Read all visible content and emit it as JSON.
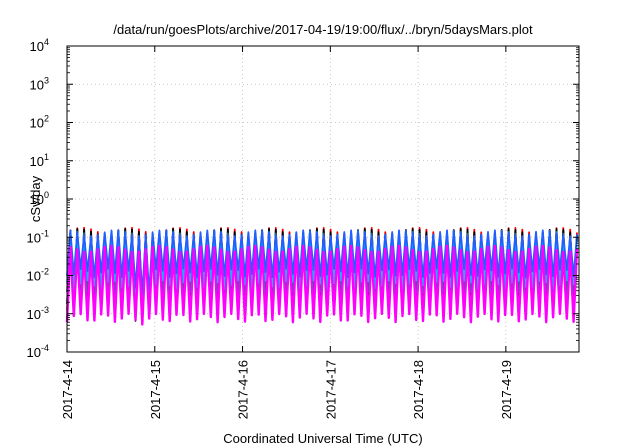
{
  "chart_data": {
    "type": "line",
    "title": "/data/run/goesPlots/archive/2017-04-19/19:00/flux/../bryn/5daysMars.plot",
    "xlabel": "Coordinated Universal Time (UTC)",
    "ylabel": "cSv/day",
    "y_scale": "log",
    "ylim": [
      0.0001,
      10000
    ],
    "xlim": [
      "2017-04-14T00:00",
      "2017-04-19T20:00"
    ],
    "x_ticks": [
      "2017-4-14",
      "2017-4-15",
      "2017-4-16",
      "2017-4-17",
      "2017-4-18",
      "2017-4-19"
    ],
    "y_ticks": [
      {
        "base": "10",
        "exp": "-4"
      },
      {
        "base": "10",
        "exp": "-3"
      },
      {
        "base": "10",
        "exp": "-2"
      },
      {
        "base": "10",
        "exp": "-1"
      },
      {
        "base": "10",
        "exp": "0"
      },
      {
        "base": "10",
        "exp": "1"
      },
      {
        "base": "10",
        "exp": "2"
      },
      {
        "base": "10",
        "exp": "3"
      },
      {
        "base": "10",
        "exp": "4"
      }
    ],
    "grid": true,
    "pattern": "sawtooth, period about 1.9 hours",
    "series": [
      {
        "color": "#ff0000",
        "peak": 0.15,
        "trough": 0.0012,
        "trough_event": 0.0009
      },
      {
        "color": "#000000",
        "peak": 0.14,
        "trough": 0.0015,
        "trough_event": 0.0008
      },
      {
        "color": "#008080",
        "peak": 0.12,
        "trough": 0.003,
        "trough_event": 0.0015
      },
      {
        "color": "#00c0ff",
        "peak": 0.11,
        "trough": 0.006,
        "trough_event": 0.0025
      },
      {
        "color": "#2060ff",
        "peak": 0.13,
        "trough": 0.012,
        "trough_event": 0.004
      },
      {
        "color": "#ff00ff",
        "peak": 0.05,
        "trough": 0.0008,
        "trough_event": 0.0007
      }
    ]
  }
}
